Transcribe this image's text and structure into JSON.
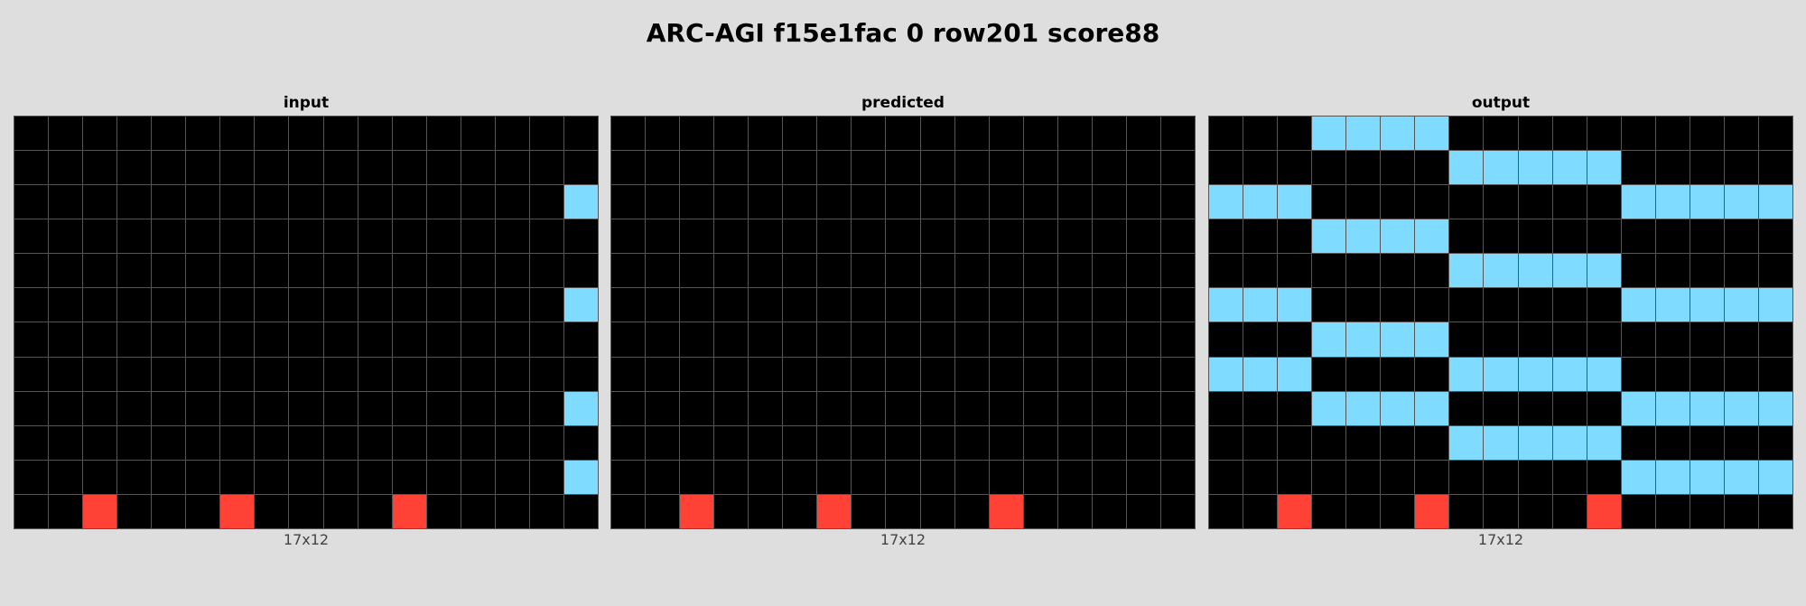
{
  "title": "ARC-AGI f15e1fac 0 row201 score88",
  "colors": {
    "0": "#000000",
    "2": "#ff4136",
    "8": "#7fdbff"
  },
  "panels": [
    {
      "label": "input",
      "dims": "17x12",
      "grid": [
        [
          0,
          0,
          0,
          0,
          0,
          0,
          0,
          0,
          0,
          0,
          0,
          0,
          0,
          0,
          0,
          0,
          0
        ],
        [
          0,
          0,
          0,
          0,
          0,
          0,
          0,
          0,
          0,
          0,
          0,
          0,
          0,
          0,
          0,
          0,
          0
        ],
        [
          0,
          0,
          0,
          0,
          0,
          0,
          0,
          0,
          0,
          0,
          0,
          0,
          0,
          0,
          0,
          0,
          8
        ],
        [
          0,
          0,
          0,
          0,
          0,
          0,
          0,
          0,
          0,
          0,
          0,
          0,
          0,
          0,
          0,
          0,
          0
        ],
        [
          0,
          0,
          0,
          0,
          0,
          0,
          0,
          0,
          0,
          0,
          0,
          0,
          0,
          0,
          0,
          0,
          0
        ],
        [
          0,
          0,
          0,
          0,
          0,
          0,
          0,
          0,
          0,
          0,
          0,
          0,
          0,
          0,
          0,
          0,
          8
        ],
        [
          0,
          0,
          0,
          0,
          0,
          0,
          0,
          0,
          0,
          0,
          0,
          0,
          0,
          0,
          0,
          0,
          0
        ],
        [
          0,
          0,
          0,
          0,
          0,
          0,
          0,
          0,
          0,
          0,
          0,
          0,
          0,
          0,
          0,
          0,
          0
        ],
        [
          0,
          0,
          0,
          0,
          0,
          0,
          0,
          0,
          0,
          0,
          0,
          0,
          0,
          0,
          0,
          0,
          8
        ],
        [
          0,
          0,
          0,
          0,
          0,
          0,
          0,
          0,
          0,
          0,
          0,
          0,
          0,
          0,
          0,
          0,
          0
        ],
        [
          0,
          0,
          0,
          0,
          0,
          0,
          0,
          0,
          0,
          0,
          0,
          0,
          0,
          0,
          0,
          0,
          8
        ],
        [
          0,
          0,
          2,
          0,
          0,
          0,
          2,
          0,
          0,
          0,
          0,
          2,
          0,
          0,
          0,
          0,
          0
        ]
      ]
    },
    {
      "label": "predicted",
      "dims": "",
      "grid": [
        [
          0,
          0,
          0,
          0,
          0,
          0,
          0,
          0,
          0,
          0,
          0,
          0,
          0,
          0,
          0,
          0,
          0
        ],
        [
          0,
          0,
          0,
          0,
          0,
          0,
          0,
          0,
          0,
          0,
          0,
          0,
          0,
          0,
          0,
          0,
          0
        ],
        [
          0,
          0,
          0,
          0,
          0,
          0,
          0,
          0,
          0,
          0,
          0,
          0,
          0,
          0,
          0,
          0,
          0
        ],
        [
          0,
          0,
          0,
          0,
          0,
          0,
          0,
          0,
          0,
          0,
          0,
          0,
          0,
          0,
          0,
          0,
          0
        ],
        [
          0,
          0,
          0,
          0,
          0,
          0,
          0,
          0,
          0,
          0,
          0,
          0,
          0,
          0,
          0,
          0,
          0
        ],
        [
          0,
          0,
          0,
          0,
          0,
          0,
          0,
          0,
          0,
          0,
          0,
          0,
          0,
          0,
          0,
          0,
          0
        ],
        [
          0,
          0,
          0,
          0,
          0,
          0,
          0,
          0,
          0,
          0,
          0,
          0,
          0,
          0,
          0,
          0,
          0
        ],
        [
          0,
          0,
          0,
          0,
          0,
          0,
          0,
          0,
          0,
          0,
          0,
          0,
          0,
          0,
          0,
          0,
          0
        ],
        [
          0,
          0,
          0,
          0,
          0,
          0,
          0,
          0,
          0,
          0,
          0,
          0,
          0,
          0,
          0,
          0,
          0
        ],
        [
          0,
          0,
          0,
          0,
          0,
          0,
          0,
          0,
          0,
          0,
          0,
          0,
          0,
          0,
          0,
          0,
          0
        ],
        [
          0,
          0,
          0,
          0,
          0,
          0,
          0,
          0,
          0,
          0,
          0,
          0,
          0,
          0,
          0,
          0,
          0
        ],
        [
          0,
          0,
          2,
          0,
          0,
          0,
          2,
          0,
          0,
          0,
          0,
          2,
          0,
          0,
          0,
          0,
          0
        ]
      ]
    },
    {
      "label": "output",
      "dims": "17x12",
      "grid": [
        [
          0,
          0,
          0,
          8,
          8,
          8,
          8,
          0,
          0,
          0,
          0,
          0,
          0,
          0,
          0,
          0,
          0
        ],
        [
          0,
          0,
          0,
          0,
          0,
          0,
          0,
          8,
          8,
          8,
          8,
          8,
          0,
          0,
          0,
          0,
          0
        ],
        [
          8,
          8,
          8,
          0,
          0,
          0,
          0,
          0,
          0,
          0,
          0,
          0,
          8,
          8,
          8,
          8,
          8
        ],
        [
          0,
          0,
          0,
          8,
          8,
          8,
          8,
          0,
          0,
          0,
          0,
          0,
          0,
          0,
          0,
          0,
          0
        ],
        [
          0,
          0,
          0,
          0,
          0,
          0,
          0,
          8,
          8,
          8,
          8,
          8,
          0,
          0,
          0,
          0,
          0
        ],
        [
          8,
          8,
          8,
          0,
          0,
          0,
          0,
          0,
          0,
          0,
          0,
          0,
          8,
          8,
          8,
          8,
          8
        ],
        [
          0,
          0,
          0,
          8,
          8,
          8,
          8,
          0,
          0,
          0,
          0,
          0,
          0,
          0,
          0,
          0,
          0
        ],
        [
          8,
          8,
          8,
          0,
          0,
          0,
          0,
          8,
          8,
          8,
          8,
          8,
          0,
          0,
          0,
          0,
          0
        ],
        [
          0,
          0,
          0,
          8,
          8,
          8,
          8,
          0,
          0,
          0,
          0,
          0,
          8,
          8,
          8,
          8,
          8
        ],
        [
          0,
          0,
          0,
          0,
          0,
          0,
          0,
          8,
          8,
          8,
          8,
          8,
          0,
          0,
          0,
          0,
          0
        ],
        [
          0,
          0,
          0,
          0,
          0,
          0,
          0,
          0,
          0,
          0,
          0,
          0,
          8,
          8,
          8,
          8,
          8
        ],
        [
          0,
          0,
          2,
          0,
          0,
          0,
          2,
          0,
          0,
          0,
          0,
          2,
          0,
          0,
          0,
          0,
          0
        ]
      ]
    }
  ],
  "predicted_dims": "17x12"
}
